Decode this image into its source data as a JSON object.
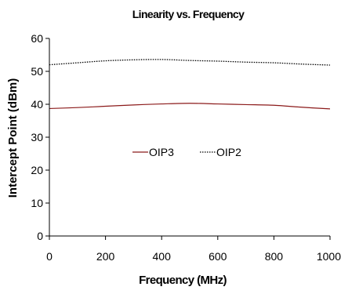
{
  "chart_data": {
    "type": "line",
    "title": "Linearity vs. Frequency",
    "xlabel": "Frequency (MHz)",
    "ylabel": "Intercept Point (dBm)",
    "xlim": [
      0,
      1000
    ],
    "ylim": [
      0,
      60
    ],
    "x_ticks": [
      "0",
      "200",
      "400",
      "600",
      "800",
      "1000"
    ],
    "y_ticks": [
      "0",
      "10",
      "20",
      "30",
      "40",
      "50",
      "60"
    ],
    "grid": false,
    "legend_position": "center",
    "series": [
      {
        "name": "OIP3",
        "color": "#8B1A1A",
        "style": "solid",
        "x": [
          0,
          100,
          200,
          300,
          400,
          500,
          600,
          700,
          800,
          900,
          1000
        ],
        "y": [
          38.7,
          39.0,
          39.4,
          39.8,
          40.1,
          40.3,
          40.1,
          39.9,
          39.7,
          39.1,
          38.6
        ]
      },
      {
        "name": "OIP2",
        "color": "#000000",
        "style": "dotted",
        "x": [
          0,
          100,
          200,
          300,
          400,
          500,
          600,
          700,
          800,
          900,
          1000
        ],
        "y": [
          52.0,
          52.6,
          53.2,
          53.5,
          53.6,
          53.3,
          53.1,
          52.8,
          52.6,
          52.2,
          51.9
        ]
      }
    ]
  }
}
